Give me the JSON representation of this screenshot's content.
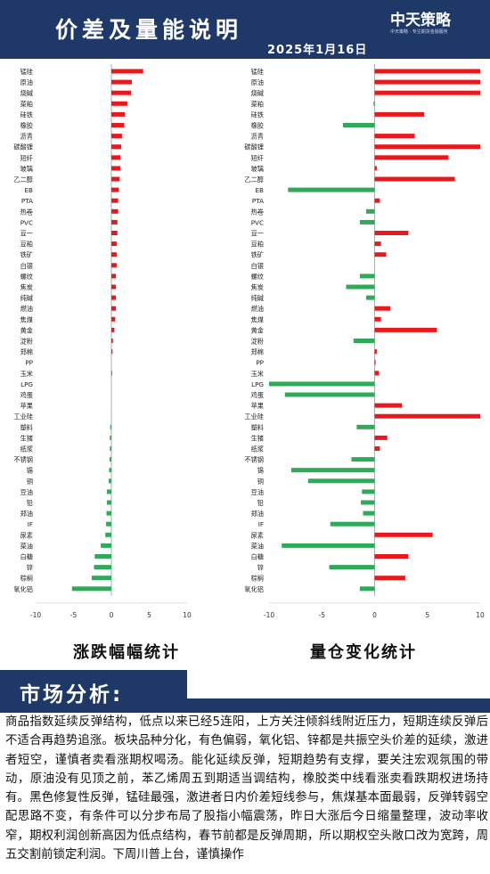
{
  "header": {
    "title": "价差及量能说明",
    "date": "2025年1月16日",
    "logo_text": "中天策略",
    "logo_sub": "中天策略 · 专注期货金融服务"
  },
  "captions": {
    "left": "涨跌幅幅统计",
    "right": "量仓变化统计"
  },
  "market": {
    "title": "市场分析:",
    "text": "商品指数延续反弹结构，低点以来已经5连阳，上方关注倾斜线附近压力，短期连续反弹后不适合再趋势追涨。板块品种分化，有色偏弱，氧化铝、锌都是共振空头价差的延续，激进者短空，谨慎者卖看涨期权喝汤。能化延续反弹，短期趋势有支撑，要关注宏观氛围的带动，原油没有见顶之前，苯乙烯周五到期适当调结构，橡胶类中线看涨卖看跌期权进场持有。黑色修复性反弹，锰硅最强，激进者日内价差短线参与，焦煤基本面最弱，反弹转弱空配思路不变，有条件可以分步布局了股指小幅震荡，昨日大涨后今日缩量整理，波动率收窄，期权利润创新高因为低点结构，春节前都是反弹周期，所以期权空头敞口改为宽跨，周五交割前锁定利润。下周川普上台，谨慎操作"
  },
  "chart_data": [
    {
      "type": "bar",
      "orientation": "horizontal",
      "title": "涨跌幅幅统计",
      "xlim": [
        -10,
        10
      ],
      "xticks": [
        -10,
        -5,
        0,
        5,
        10
      ],
      "colors": {
        "positive": "#e8191c",
        "negative": "#2eaa58"
      },
      "categories": [
        "锰硅",
        "原油",
        "烧碱",
        "菜粕",
        "硅铁",
        "橡胶",
        "沥青",
        "碳酸锂",
        "短纤",
        "玻璃",
        "乙二醇",
        "EB",
        "PTA",
        "热卷",
        "PVC",
        "豆一",
        "豆粕",
        "铁矿",
        "白银",
        "螺纹",
        "焦炭",
        "纯碱",
        "燃油",
        "焦煤",
        "黄金",
        "淀粉",
        "郑棉",
        "PP",
        "玉米",
        "LPG",
        "鸡蛋",
        "苹果",
        "工业硅",
        "塑料",
        "生猪",
        "纸浆",
        "不锈钢",
        "锡",
        "铜",
        "豆油",
        "铅",
        "郑油",
        "IF",
        "尿素",
        "菜油",
        "白糖",
        "锌",
        "棕榈",
        "氧化铝"
      ],
      "values": [
        4.2,
        2.7,
        2.6,
        2.1,
        1.8,
        1.7,
        1.4,
        1.3,
        1.2,
        1.2,
        1.1,
        1.0,
        0.9,
        0.9,
        0.8,
        0.8,
        0.7,
        0.7,
        0.7,
        0.6,
        0.6,
        0.6,
        0.6,
        0.5,
        0.4,
        0.2,
        0.15,
        0,
        0.05,
        0,
        0,
        0,
        0,
        -0.15,
        -0.2,
        -0.2,
        -0.25,
        -0.3,
        -0.35,
        -0.6,
        -0.6,
        -0.65,
        -0.7,
        -0.8,
        -1.4,
        -2.2,
        -2.3,
        -2.6,
        -5.2
      ]
    },
    {
      "type": "bar",
      "orientation": "horizontal",
      "title": "量仓变化统计",
      "xlim": [
        -10,
        10
      ],
      "xticks": [
        -10,
        -5,
        0,
        5,
        10
      ],
      "colors": {
        "positive": "#e8191c",
        "negative": "#2eaa58"
      },
      "categories": [
        "锰硅",
        "原油",
        "烧碱",
        "菜粕",
        "硅铁",
        "橡胶",
        "沥青",
        "碳酸锂",
        "短纤",
        "玻璃",
        "乙二醇",
        "EB",
        "PTA",
        "热卷",
        "PVC",
        "豆一",
        "豆粕",
        "铁矿",
        "白银",
        "螺纹",
        "焦炭",
        "纯碱",
        "燃油",
        "焦煤",
        "黄金",
        "淀粉",
        "郑棉",
        "PP",
        "玉米",
        "LPG",
        "鸡蛋",
        "苹果",
        "工业硅",
        "塑料",
        "生猪",
        "纸浆",
        "不锈钢",
        "锡",
        "铜",
        "豆油",
        "铅",
        "郑油",
        "IF",
        "尿素",
        "菜油",
        "白糖",
        "锌",
        "棕榈",
        "氧化铝"
      ],
      "values": [
        10,
        10,
        10,
        -0.1,
        4.7,
        -3.0,
        3.8,
        10,
        7.0,
        0.2,
        7.6,
        -8.2,
        0.5,
        -0.8,
        -1.4,
        3.2,
        0.6,
        1.1,
        0,
        -1.4,
        -2.7,
        -0.8,
        1.5,
        0.6,
        5.9,
        -2.0,
        0.2,
        0.1,
        0.4,
        -10,
        -8.5,
        2.6,
        10,
        -1.7,
        1.2,
        0.5,
        -2.2,
        -7.9,
        -6.3,
        -1.2,
        -1.3,
        -1.1,
        -4.2,
        5.5,
        -8.8,
        3.2,
        -4.3,
        2.9,
        -1.4
      ]
    }
  ]
}
